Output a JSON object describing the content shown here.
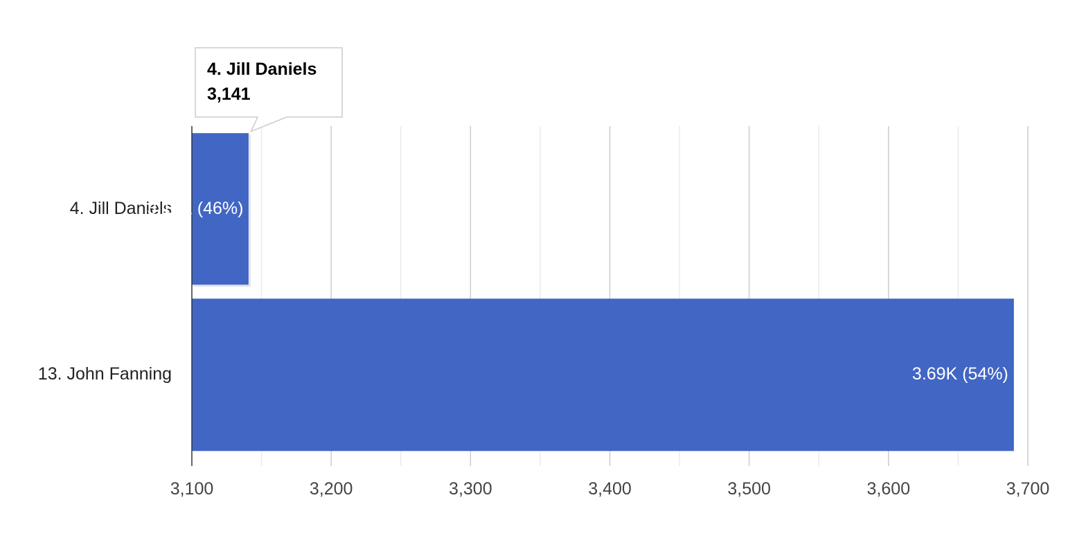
{
  "chart_data": {
    "type": "bar",
    "orientation": "horizontal",
    "categories": [
      "4. Jill Daniels",
      "13. John Fanning"
    ],
    "values": [
      3141,
      3690
    ],
    "data_labels": [
      "3.14K (46%)",
      "3.69K (54%)"
    ],
    "x_ticks": [
      "3,100",
      "3,200",
      "3,300",
      "3,400",
      "3,500",
      "3,600",
      "3,700"
    ],
    "xlim": [
      3100,
      3700
    ],
    "major_step": 100,
    "minor_step": 50,
    "grid": true,
    "bar_color": "#4166c4",
    "tooltip": {
      "title": "4. Jill Daniels",
      "value": "3,141",
      "category_index": 0
    }
  }
}
